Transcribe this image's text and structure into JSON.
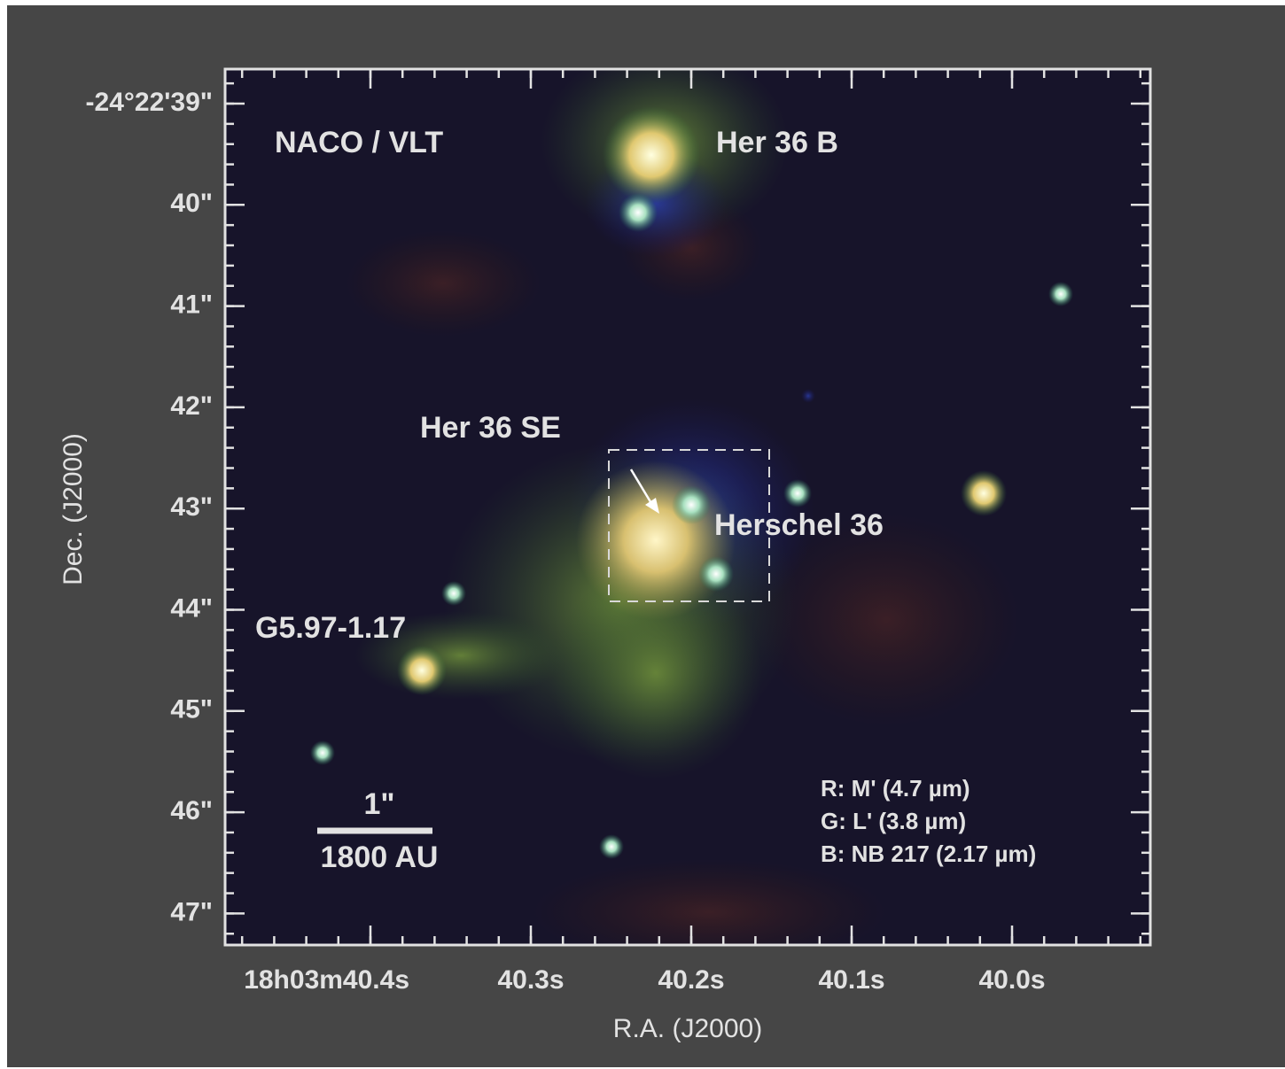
{
  "figure": {
    "y_axis": {
      "label": "Dec. (J2000)",
      "ticks": [
        "-24°22'39\"",
        "40\"",
        "41\"",
        "42\"",
        "43\"",
        "44\"",
        "45\"",
        "46\"",
        "47\""
      ]
    },
    "x_axis": {
      "label": "R.A. (J2000)",
      "ticks": [
        "18h03m40.4s",
        "40.3s",
        "40.2s",
        "40.1s",
        "40.0s"
      ]
    },
    "annotations": {
      "instrument": "NACO / VLT",
      "her36b": "Her 36 B",
      "her36se": "Her 36 SE",
      "herschel36": "Herschel 36",
      "g597": "G5.97-1.17"
    },
    "scale_bar": {
      "angle": "1\"",
      "distance": "1800 AU"
    },
    "bands": [
      "R: M' (4.7 µm)",
      "G: L' (3.8 µm)",
      "B: NB 217 (2.17 µm)"
    ]
  }
}
